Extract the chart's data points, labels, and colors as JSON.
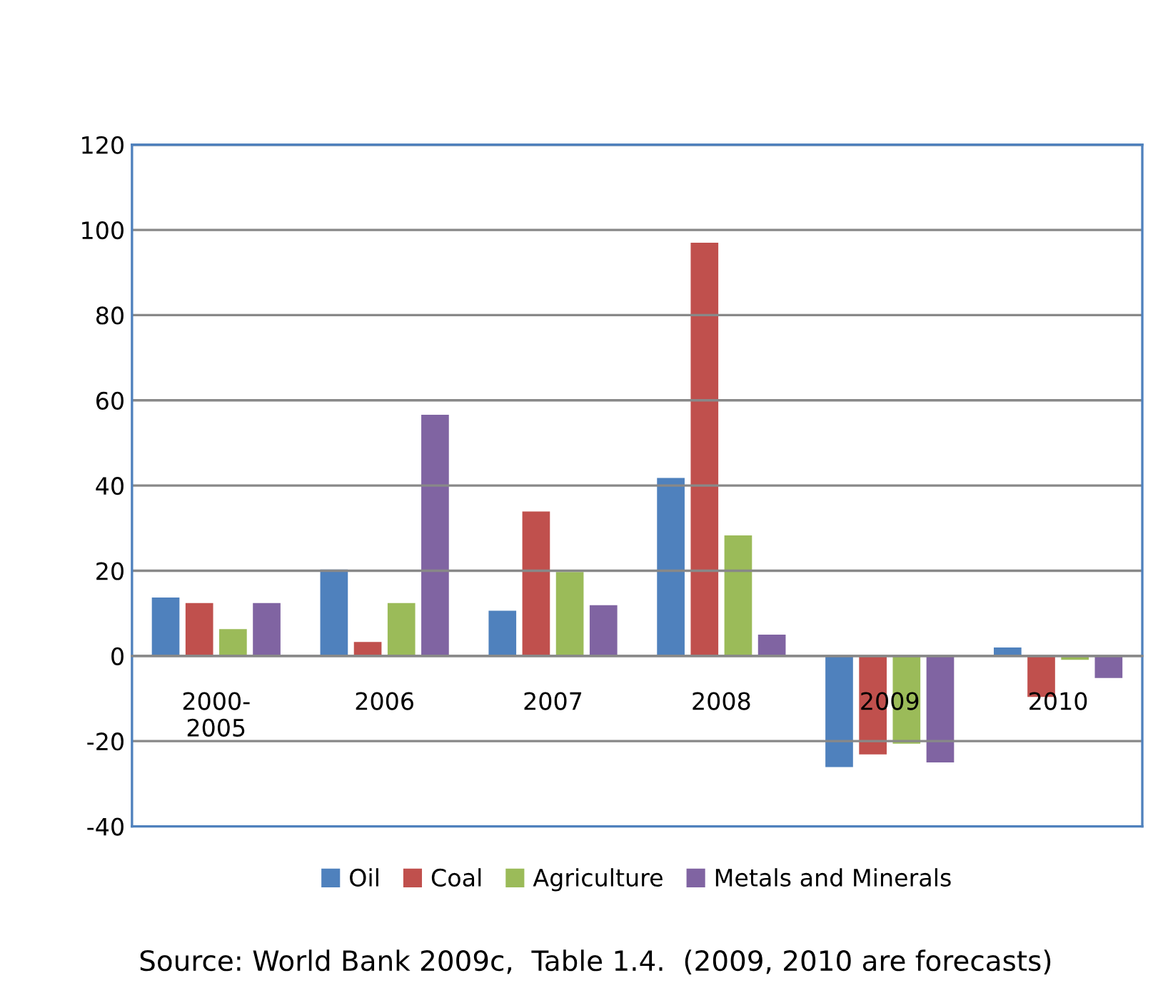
{
  "chart_data": {
    "type": "bar",
    "categories": [
      "2000-\n2005",
      "2006",
      "2007",
      "2008",
      "2009",
      "2010"
    ],
    "series": [
      {
        "name": "Oil",
        "color": "#4f81bd",
        "values": [
          13.7,
          20.3,
          10.6,
          41.8,
          -26.1,
          2
        ]
      },
      {
        "name": "Coal",
        "color": "#c0504d",
        "values": [
          12.4,
          3.3,
          33.9,
          97,
          -23.1,
          -9.6
        ]
      },
      {
        "name": "Agriculture",
        "color": "#9bbb59",
        "values": [
          6.3,
          12.4,
          19.7,
          28.3,
          -20.6,
          -0.9
        ]
      },
      {
        "name": "Metals and Minerals",
        "color": "#8064a2",
        "values": [
          12.4,
          56.6,
          11.9,
          5,
          -25,
          -5.2
        ]
      }
    ],
    "ylim": [
      -40,
      120
    ],
    "yticks": [
      -40,
      -20,
      0,
      20,
      40,
      60,
      80,
      100,
      120
    ],
    "grid": "y",
    "legend": "bottom",
    "annotations": [
      "Source: World Bank 2009c,  Table 1.4.  (2009, 2010 are forecasts)"
    ]
  }
}
